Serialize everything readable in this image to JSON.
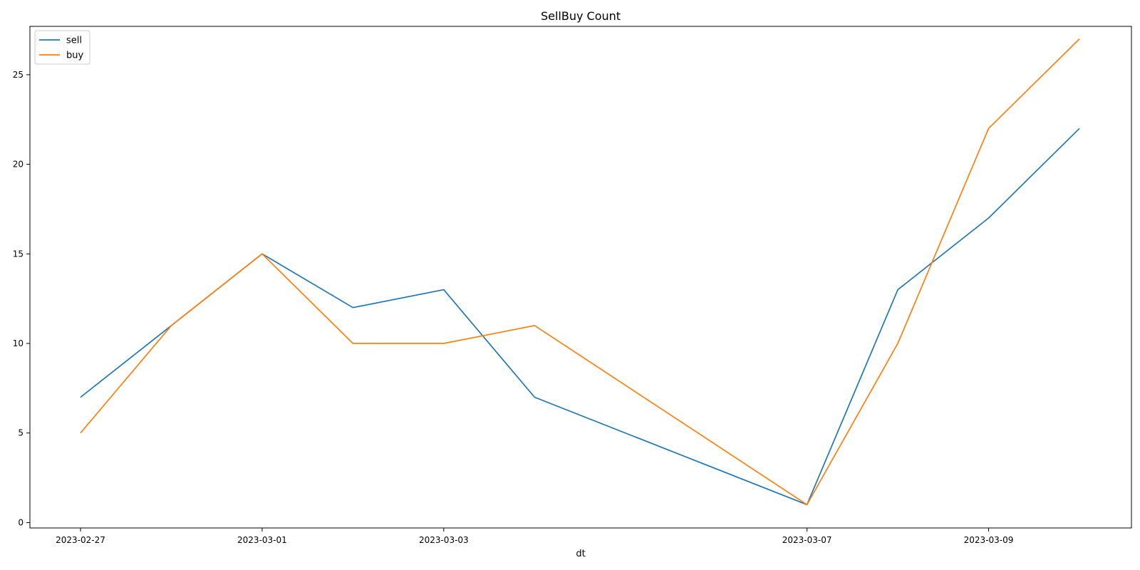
{
  "chart_data": {
    "type": "line",
    "title": "SellBuy Count",
    "xlabel": "dt",
    "ylabel": "",
    "x": [
      "2023-02-27",
      "2023-02-28",
      "2023-03-01",
      "2023-03-02",
      "2023-03-03",
      "2023-03-04",
      "2023-03-07",
      "2023-03-08",
      "2023-03-09",
      "2023-03-10"
    ],
    "x_ticks": [
      "2023-02-27",
      "2023-03-01",
      "2023-03-03",
      "2023-03-07",
      "2023-03-09"
    ],
    "y_ticks": [
      0,
      5,
      10,
      15,
      20,
      25
    ],
    "ylim": [
      -0.3,
      27.7
    ],
    "series": [
      {
        "name": "sell",
        "color": "#1f77b4",
        "values": [
          7,
          11,
          15,
          12,
          13,
          7,
          1,
          13,
          17,
          22
        ]
      },
      {
        "name": "buy",
        "color": "#ff7f0e",
        "values": [
          5,
          11,
          15,
          10,
          10,
          11,
          1,
          10,
          22,
          27
        ]
      }
    ],
    "legend": "top-left",
    "grid": false
  }
}
